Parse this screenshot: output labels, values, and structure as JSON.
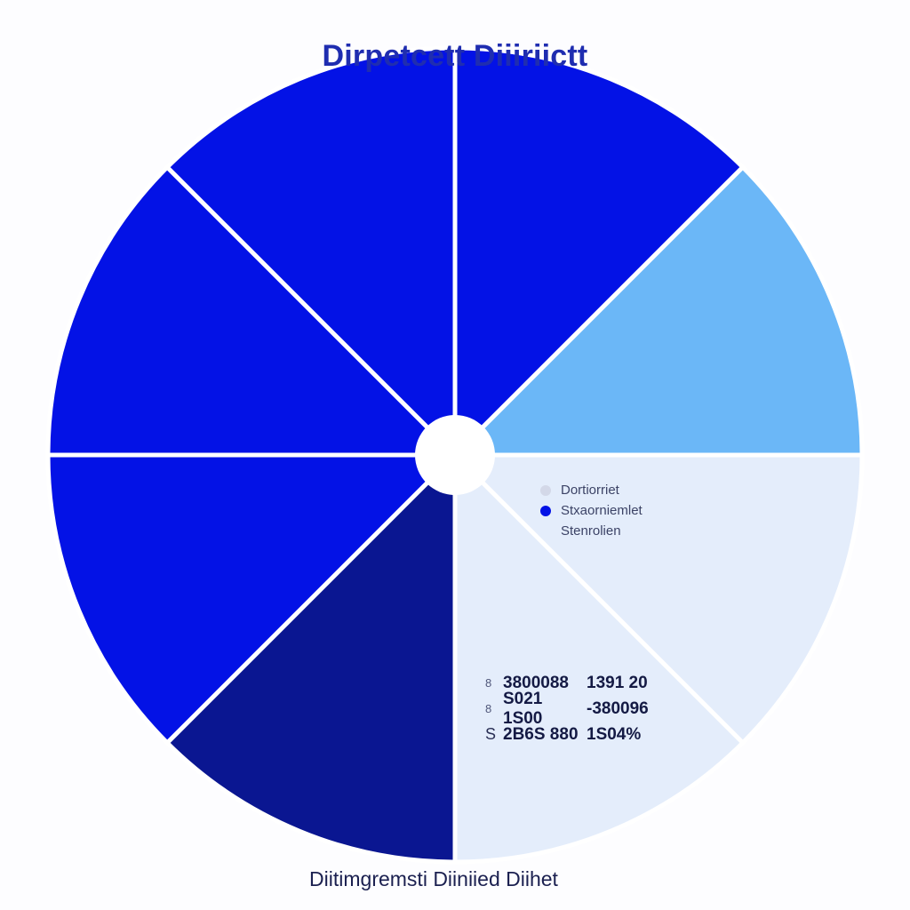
{
  "chart_data": {
    "type": "pie",
    "title": "Dirpetcett Diiiriictt",
    "footer": "Diitimgremsti Diiniied Diihet",
    "slice_order": "clockwise from 12 o'clock",
    "slices": [
      {
        "value": 12.5,
        "color": "#0312e6"
      },
      {
        "value": 12.5,
        "color": "#6bb7f7"
      },
      {
        "value": 12.5,
        "color": "#e4edfb"
      },
      {
        "value": 12.5,
        "color": "#e4edfb"
      },
      {
        "value": 12.5,
        "color": "#0a1691"
      },
      {
        "value": 12.5,
        "color": "#0312e6"
      },
      {
        "value": 12.5,
        "color": "#0312e6"
      },
      {
        "value": 12.5,
        "color": "#0312e6"
      }
    ],
    "legend": [
      {
        "label": "Dortiorriet",
        "color": "#d3d8e8"
      },
      {
        "label": "Stxaorniemlet",
        "color": "#0312e6"
      },
      {
        "label": "Stenrolien",
        "color": ""
      }
    ],
    "table_rows": [
      {
        "marker": "8",
        "a": "3800088",
        "b": "1391 20"
      },
      {
        "marker": "8",
        "a": "S021 1S00",
        "b": "-380096"
      },
      {
        "marker": "S",
        "a": "2B6S 880",
        "b": "1S04%"
      }
    ]
  }
}
